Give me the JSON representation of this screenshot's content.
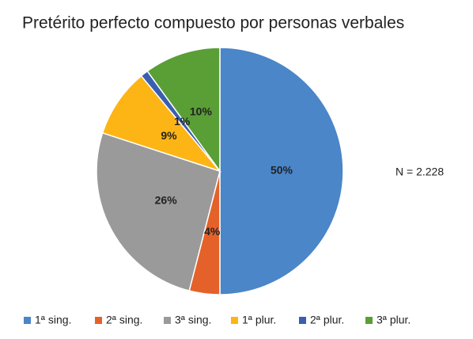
{
  "chart_data": {
    "type": "pie",
    "title": "Pretérito perfecto compuesto por personas verbales",
    "annotation": "N = 2.228",
    "categories": [
      "1ª sing.",
      "2ª sing.",
      "3ª sing.",
      "1ª plur.",
      "2ª plur.",
      "3ª plur."
    ],
    "values": [
      50,
      4,
      26,
      9,
      1,
      10
    ],
    "value_labels": [
      "50%",
      "4%",
      "26%",
      "9%",
      "1%",
      "10%"
    ],
    "colors": [
      "#4a86c8",
      "#e4622a",
      "#9a9a9a",
      "#fdb515",
      "#3a5fb0",
      "#5a9e36"
    ],
    "legend": "bottom"
  }
}
